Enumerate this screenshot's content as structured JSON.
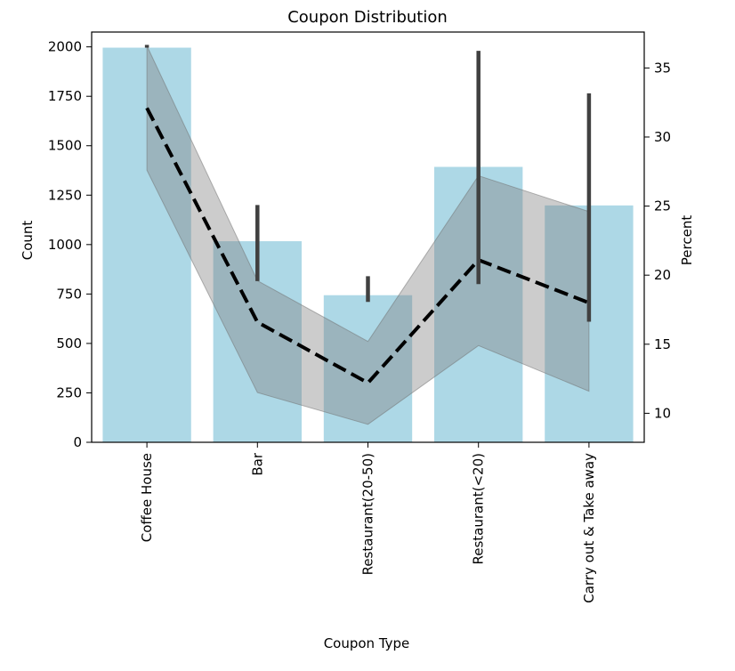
{
  "chart_data": {
    "type": "bar",
    "title": "Coupon Distribution",
    "xlabel": "Coupon Type",
    "ylabel": "Count",
    "ylabel_right": "Percent",
    "categories": [
      "Coffee House",
      "Bar",
      "Restaurant(20-50)",
      "Restaurant(<20)",
      "Carry out & Take away"
    ],
    "ylim": [
      0,
      2075
    ],
    "yticks": [
      0,
      250,
      500,
      750,
      1000,
      1250,
      1500,
      1750,
      2000
    ],
    "ylim_right": [
      7.9,
      37.6
    ],
    "yticks_right": [
      10,
      15,
      20,
      25,
      30,
      35
    ],
    "grid": false,
    "series": [
      {
        "type": "bar",
        "axis": "left",
        "values": [
          1996,
          1017,
          744,
          1393,
          1198
        ],
        "error_low": [
          null,
          815,
          710,
          800,
          610
        ],
        "error_high": [
          2010,
          1200,
          840,
          1980,
          1765
        ],
        "color": "#add8e6"
      },
      {
        "type": "line",
        "axis": "right",
        "style": "dashed",
        "values": [
          32.1,
          16.6,
          12.2,
          21.1,
          18.0
        ],
        "band_low": [
          27.6,
          11.5,
          9.2,
          14.9,
          11.6
        ],
        "band_high": [
          36.6,
          19.6,
          15.2,
          27.2,
          24.6
        ],
        "color": "#000000"
      }
    ]
  }
}
